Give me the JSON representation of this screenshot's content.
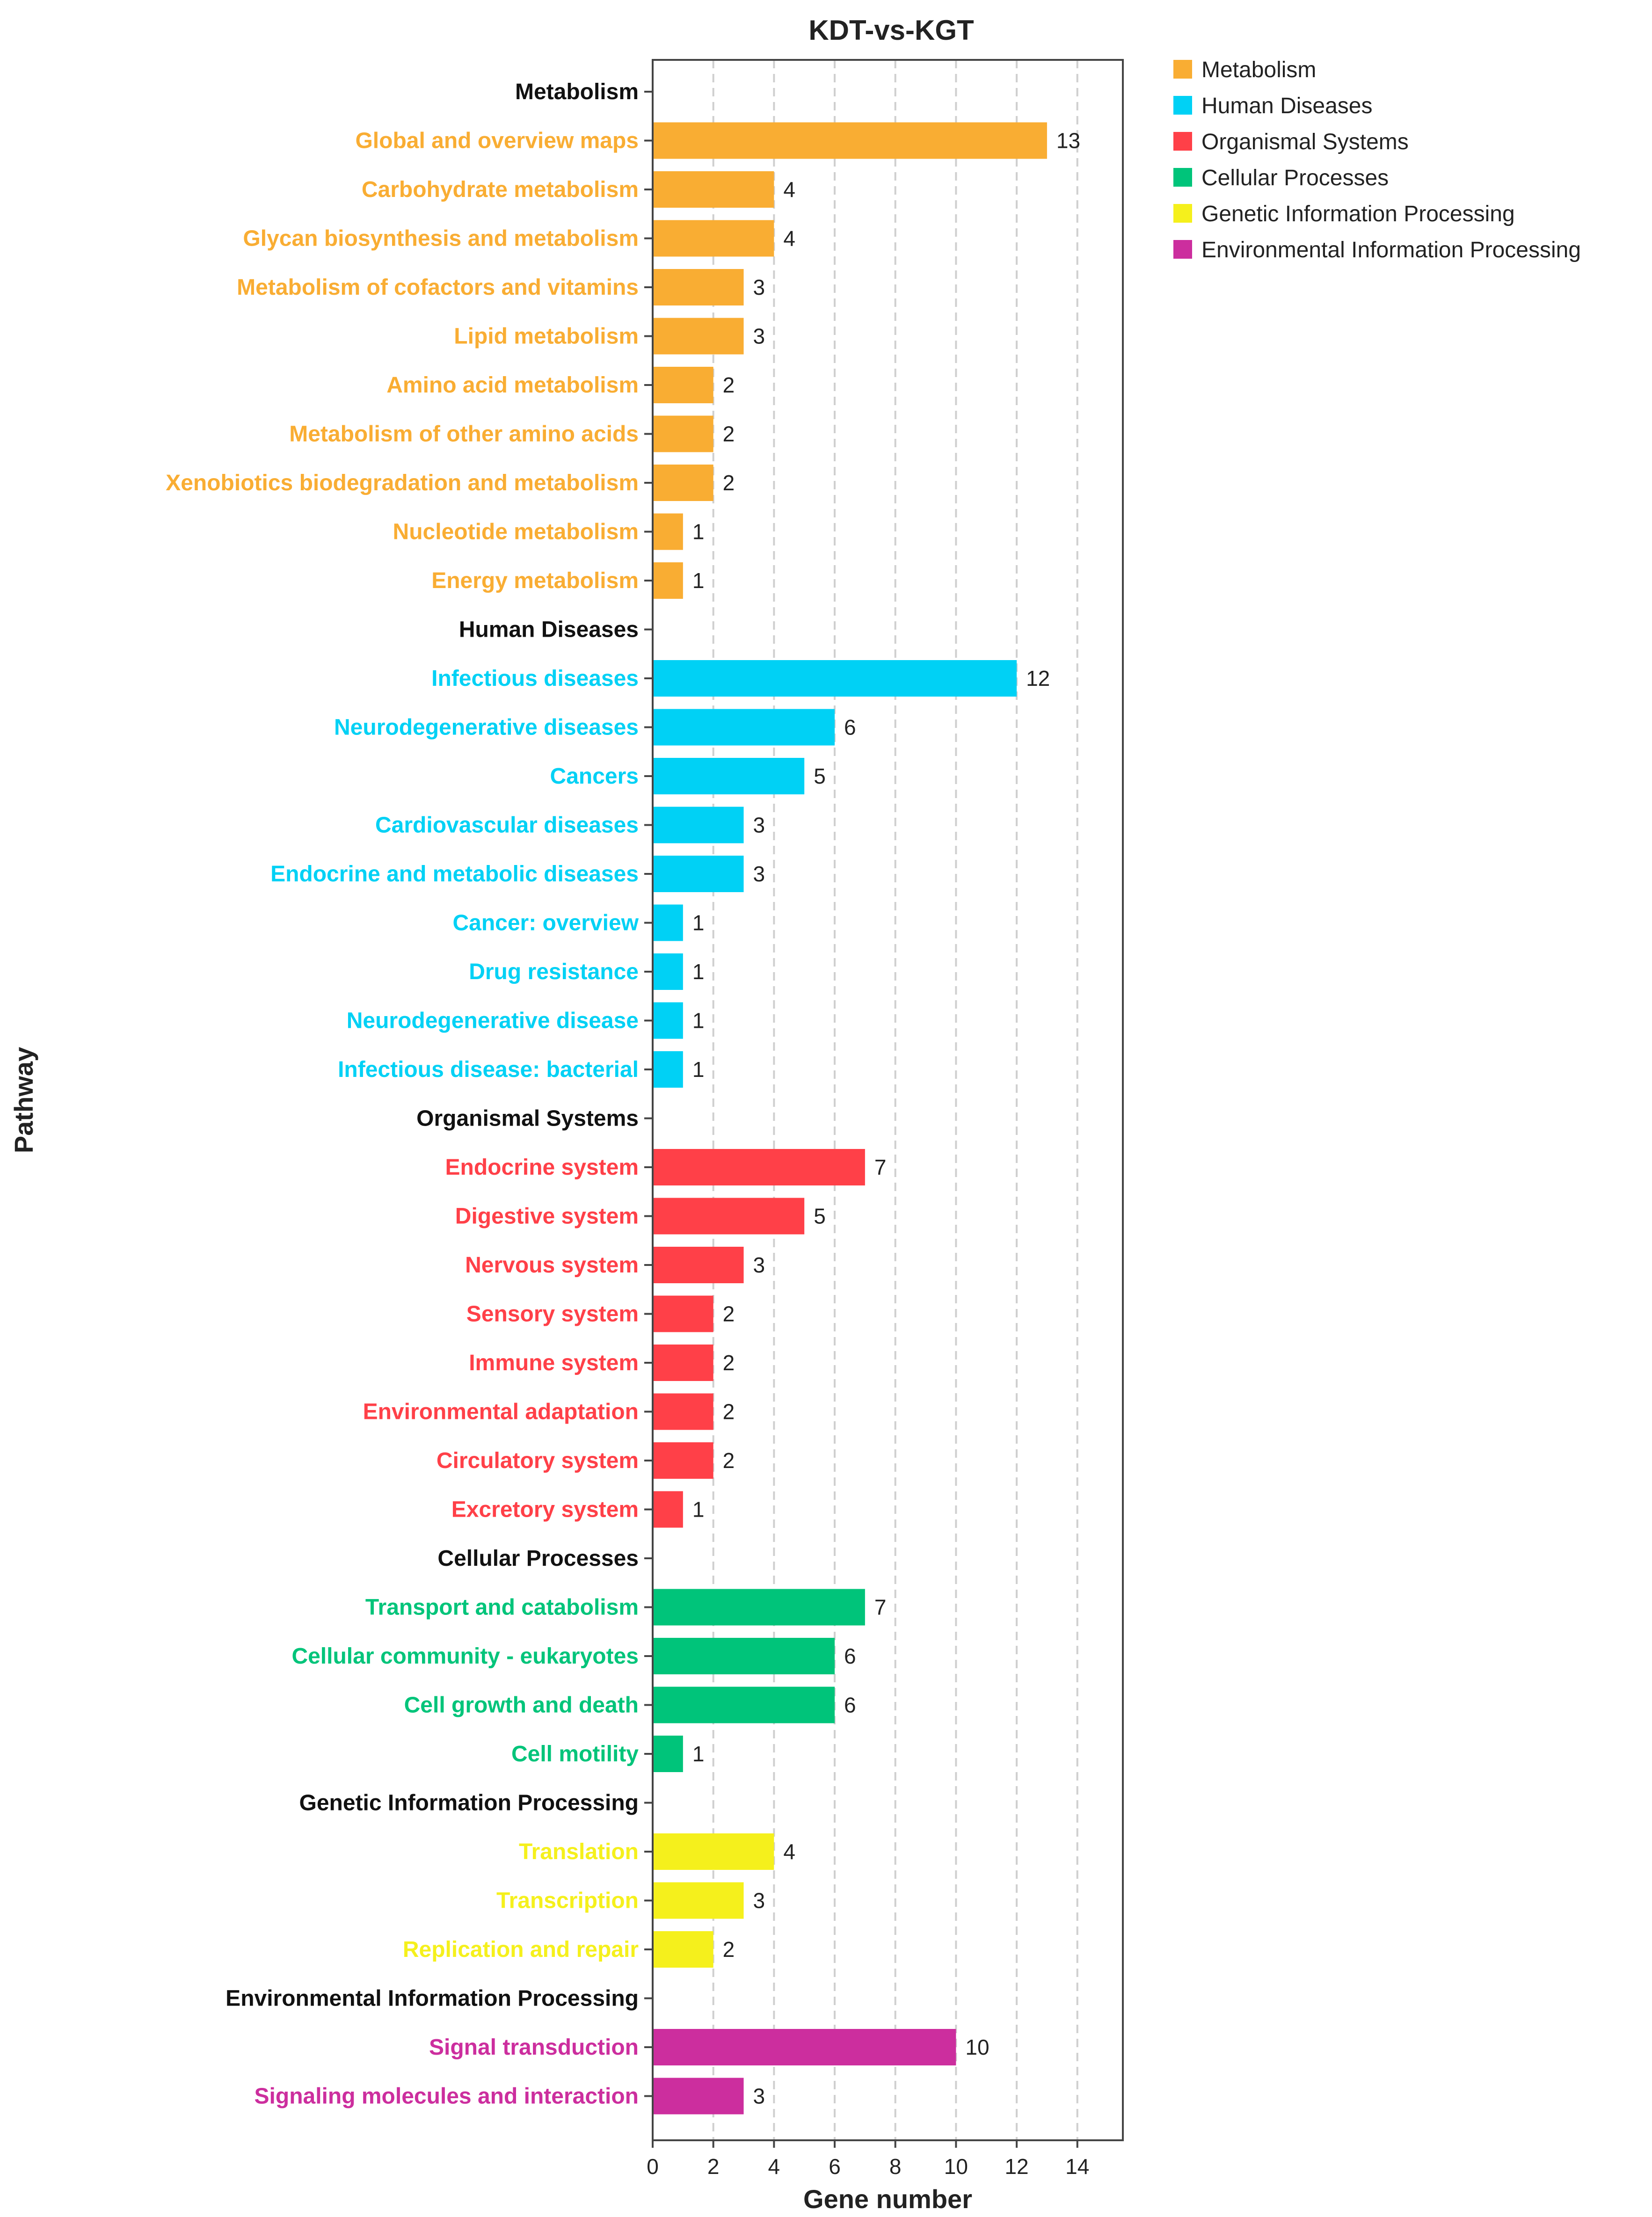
{
  "chart_data": {
    "type": "bar",
    "orientation": "horizontal",
    "title": "KDT-vs-KGT",
    "xlabel": "Gene number",
    "ylabel": "Pathway",
    "xlim": [
      0,
      15.5
    ],
    "xticks": [
      0,
      2,
      4,
      6,
      8,
      10,
      12,
      14
    ],
    "grid": "vertical dashed",
    "legend_position": "top-right",
    "groups": [
      {
        "name": "Metabolism",
        "color": "#F9AD33",
        "items": [
          {
            "label": "Global and overview maps",
            "value": 13
          },
          {
            "label": "Carbohydrate metabolism",
            "value": 4
          },
          {
            "label": "Glycan biosynthesis and metabolism",
            "value": 4
          },
          {
            "label": "Metabolism of cofactors and vitamins",
            "value": 3
          },
          {
            "label": "Lipid metabolism",
            "value": 3
          },
          {
            "label": "Amino acid metabolism",
            "value": 2
          },
          {
            "label": "Metabolism of other amino acids",
            "value": 2
          },
          {
            "label": "Xenobiotics biodegradation and metabolism",
            "value": 2
          },
          {
            "label": "Nucleotide metabolism",
            "value": 1
          },
          {
            "label": "Energy metabolism",
            "value": 1
          }
        ]
      },
      {
        "name": "Human Diseases",
        "color": "#00D1F5",
        "items": [
          {
            "label": "Infectious diseases",
            "value": 12
          },
          {
            "label": "Neurodegenerative diseases",
            "value": 6
          },
          {
            "label": "Cancers",
            "value": 5
          },
          {
            "label": "Cardiovascular diseases",
            "value": 3
          },
          {
            "label": "Endocrine and metabolic diseases",
            "value": 3
          },
          {
            "label": "Cancer: overview",
            "value": 1
          },
          {
            "label": "Drug resistance",
            "value": 1
          },
          {
            "label": "Neurodegenerative disease",
            "value": 1
          },
          {
            "label": "Infectious disease: bacterial",
            "value": 1
          }
        ]
      },
      {
        "name": "Organismal Systems",
        "color": "#FF4048",
        "items": [
          {
            "label": "Endocrine system",
            "value": 7
          },
          {
            "label": "Digestive system",
            "value": 5
          },
          {
            "label": "Nervous system",
            "value": 3
          },
          {
            "label": "Sensory system",
            "value": 2
          },
          {
            "label": "Immune system",
            "value": 2
          },
          {
            "label": "Environmental adaptation",
            "value": 2
          },
          {
            "label": "Circulatory system",
            "value": 2
          },
          {
            "label": "Excretory system",
            "value": 1
          }
        ]
      },
      {
        "name": "Cellular Processes",
        "color": "#00C47A",
        "items": [
          {
            "label": "Transport and catabolism",
            "value": 7
          },
          {
            "label": "Cellular community - eukaryotes",
            "value": 6
          },
          {
            "label": "Cell growth and death",
            "value": 6
          },
          {
            "label": "Cell motility",
            "value": 1
          }
        ]
      },
      {
        "name": "Genetic Information Processing",
        "color": "#F5F01C",
        "items": [
          {
            "label": "Translation",
            "value": 4
          },
          {
            "label": "Transcription",
            "value": 3
          },
          {
            "label": "Replication and repair",
            "value": 2
          }
        ]
      },
      {
        "name": "Environmental Information Processing",
        "color": "#CC2E9E",
        "items": [
          {
            "label": "Signal transduction",
            "value": 10
          },
          {
            "label": "Signaling molecules and interaction",
            "value": 3
          }
        ]
      }
    ]
  }
}
